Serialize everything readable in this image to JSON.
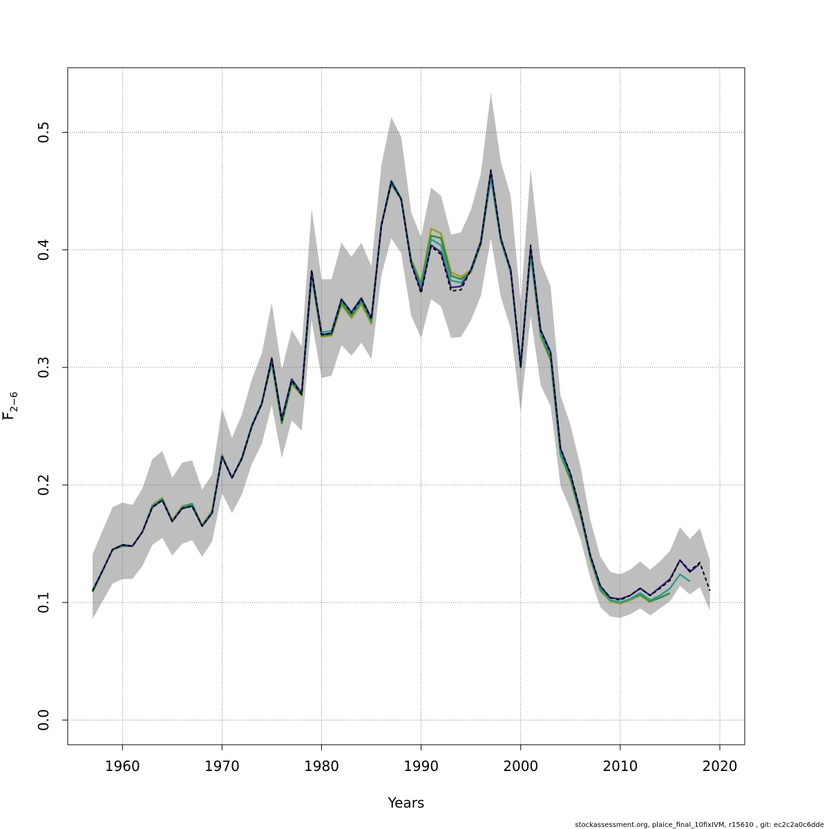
{
  "chart_data": {
    "type": "line",
    "title": "",
    "xlabel": "Years",
    "ylabel_main": "F",
    "ylabel_sub": "2−6",
    "xlim": [
      1954.5,
      2022.5
    ],
    "ylim": [
      -0.021,
      0.555
    ],
    "xticks": [
      1960,
      1970,
      1980,
      1990,
      2000,
      2010,
      2020
    ],
    "yticks": [
      0.0,
      0.1,
      0.2,
      0.3,
      0.4,
      0.5
    ],
    "ytick_labels": [
      "0.0",
      "0.1",
      "0.2",
      "0.3",
      "0.4",
      "0.5"
    ],
    "grid": true,
    "band_color": "#bebebe",
    "band": {
      "x": [
        1957,
        1958,
        1959,
        1960,
        1961,
        1962,
        1963,
        1964,
        1965,
        1966,
        1967,
        1968,
        1969,
        1970,
        1971,
        1972,
        1973,
        1974,
        1975,
        1976,
        1977,
        1978,
        1979,
        1980,
        1981,
        1982,
        1983,
        1984,
        1985,
        1986,
        1987,
        1988,
        1989,
        1990,
        1991,
        1992,
        1993,
        1994,
        1995,
        1996,
        1997,
        1998,
        1999,
        2000,
        2001,
        2002,
        2003,
        2004,
        2005,
        2006,
        2007,
        2008,
        2009,
        2010,
        2011,
        2012,
        2013,
        2014,
        2015,
        2016,
        2017,
        2018,
        2019
      ],
      "upper": [
        0.141,
        0.161,
        0.181,
        0.185,
        0.183,
        0.197,
        0.222,
        0.229,
        0.206,
        0.219,
        0.221,
        0.196,
        0.209,
        0.265,
        0.24,
        0.26,
        0.29,
        0.312,
        0.355,
        0.298,
        0.332,
        0.318,
        0.435,
        0.375,
        0.375,
        0.406,
        0.394,
        0.406,
        0.386,
        0.472,
        0.513,
        0.496,
        0.432,
        0.411,
        0.453,
        0.446,
        0.413,
        0.415,
        0.434,
        0.465,
        0.534,
        0.475,
        0.446,
        0.355,
        0.469,
        0.39,
        0.369,
        0.276,
        0.251,
        0.216,
        0.17,
        0.139,
        0.126,
        0.124,
        0.128,
        0.135,
        0.128,
        0.135,
        0.144,
        0.164,
        0.154,
        0.163,
        0.136
      ],
      "lower": [
        0.086,
        0.101,
        0.116,
        0.12,
        0.12,
        0.131,
        0.149,
        0.155,
        0.14,
        0.15,
        0.153,
        0.139,
        0.152,
        0.193,
        0.176,
        0.192,
        0.218,
        0.235,
        0.268,
        0.223,
        0.255,
        0.246,
        0.34,
        0.291,
        0.293,
        0.319,
        0.31,
        0.321,
        0.307,
        0.378,
        0.41,
        0.397,
        0.344,
        0.325,
        0.358,
        0.352,
        0.325,
        0.326,
        0.34,
        0.361,
        0.41,
        0.36,
        0.333,
        0.262,
        0.344,
        0.285,
        0.267,
        0.199,
        0.179,
        0.154,
        0.121,
        0.096,
        0.088,
        0.087,
        0.09,
        0.095,
        0.089,
        0.095,
        0.101,
        0.114,
        0.107,
        0.113,
        0.093
      ]
    },
    "series": [
      {
        "color": "#000000",
        "dashed": true,
        "width": 2,
        "x": [
          1957,
          1958,
          1959,
          1960,
          1961,
          1962,
          1963,
          1964,
          1965,
          1966,
          1967,
          1968,
          1969,
          1970,
          1971,
          1972,
          1973,
          1974,
          1975,
          1976,
          1977,
          1978,
          1979,
          1980,
          1981,
          1982,
          1983,
          1984,
          1985,
          1986,
          1987,
          1988,
          1989,
          1990,
          1991,
          1992,
          1993,
          1994,
          1995,
          1996,
          1997,
          1998,
          1999,
          2000,
          2001,
          2002,
          2003,
          2004,
          2005,
          2006,
          2007,
          2008,
          2009,
          2010,
          2011,
          2012,
          2013,
          2014,
          2015,
          2016,
          2017,
          2018,
          2019
        ],
        "y": [
          0.11,
          0.127,
          0.145,
          0.149,
          0.148,
          0.16,
          0.181,
          0.187,
          0.169,
          0.18,
          0.182,
          0.165,
          0.176,
          0.224,
          0.206,
          0.223,
          0.25,
          0.269,
          0.307,
          0.255,
          0.289,
          0.277,
          0.383,
          0.328,
          0.329,
          0.358,
          0.346,
          0.358,
          0.341,
          0.42,
          0.458,
          0.443,
          0.388,
          0.363,
          0.403,
          0.396,
          0.365,
          0.366,
          0.383,
          0.406,
          0.468,
          0.41,
          0.383,
          0.3,
          0.404,
          0.331,
          0.312,
          0.231,
          0.21,
          0.178,
          0.14,
          0.114,
          0.104,
          0.102,
          0.106,
          0.112,
          0.106,
          0.112,
          0.119,
          0.136,
          0.127,
          0.134,
          0.11
        ]
      },
      {
        "color": "#2b2b7f",
        "dashed": false,
        "width": 2.5,
        "x": [
          1957,
          1958,
          1959,
          1960,
          1961,
          1962,
          1963,
          1964,
          1965,
          1966,
          1967,
          1968,
          1969,
          1970,
          1971,
          1972,
          1973,
          1974,
          1975,
          1976,
          1977,
          1978,
          1979,
          1980,
          1981,
          1982,
          1983,
          1984,
          1985,
          1986,
          1987,
          1988,
          1989,
          1990,
          1991,
          1992,
          1993,
          1994,
          1995,
          1996,
          1997,
          1998,
          1999,
          2000,
          2001,
          2002,
          2003,
          2004,
          2005,
          2006,
          2007,
          2008,
          2009,
          2010,
          2011,
          2012,
          2013,
          2014,
          2015,
          2016,
          2017,
          2018
        ],
        "y": [
          0.11,
          0.127,
          0.145,
          0.149,
          0.148,
          0.16,
          0.181,
          0.187,
          0.169,
          0.18,
          0.182,
          0.165,
          0.176,
          0.224,
          0.206,
          0.223,
          0.25,
          0.269,
          0.308,
          0.256,
          0.29,
          0.278,
          0.382,
          0.328,
          0.329,
          0.358,
          0.347,
          0.359,
          0.342,
          0.421,
          0.458,
          0.443,
          0.389,
          0.365,
          0.404,
          0.398,
          0.368,
          0.369,
          0.383,
          0.407,
          0.467,
          0.41,
          0.383,
          0.301,
          0.402,
          0.332,
          0.313,
          0.231,
          0.209,
          0.177,
          0.14,
          0.114,
          0.104,
          0.103,
          0.106,
          0.112,
          0.106,
          0.113,
          0.12,
          0.136,
          0.126,
          0.133
        ]
      },
      {
        "color": "#2a9d8f",
        "dashed": false,
        "width": 2.5,
        "x": [
          1957,
          1958,
          1959,
          1960,
          1961,
          1962,
          1963,
          1964,
          1965,
          1966,
          1967,
          1968,
          1969,
          1970,
          1971,
          1972,
          1973,
          1974,
          1975,
          1976,
          1977,
          1978,
          1979,
          1980,
          1981,
          1982,
          1983,
          1984,
          1985,
          1986,
          1987,
          1988,
          1989,
          1990,
          1991,
          1992,
          1993,
          1994,
          1995,
          1996,
          1997,
          1998,
          1999,
          2000,
          2001,
          2002,
          2003,
          2004,
          2005,
          2006,
          2007,
          2008,
          2009,
          2010,
          2011,
          2012,
          2013,
          2014,
          2015,
          2016,
          2017
        ],
        "y": [
          0.11,
          0.127,
          0.145,
          0.149,
          0.148,
          0.16,
          0.182,
          0.188,
          0.169,
          0.181,
          0.183,
          0.165,
          0.177,
          0.225,
          0.206,
          0.223,
          0.251,
          0.27,
          0.306,
          0.255,
          0.289,
          0.278,
          0.379,
          0.33,
          0.331,
          0.357,
          0.345,
          0.357,
          0.34,
          0.42,
          0.459,
          0.444,
          0.39,
          0.368,
          0.409,
          0.404,
          0.374,
          0.372,
          0.382,
          0.406,
          0.462,
          0.409,
          0.382,
          0.3,
          0.398,
          0.328,
          0.31,
          0.228,
          0.207,
          0.176,
          0.139,
          0.112,
          0.102,
          0.1,
          0.103,
          0.108,
          0.102,
          0.106,
          0.112,
          0.124,
          0.118
        ]
      },
      {
        "color": "#2e8b2e",
        "dashed": false,
        "width": 2.5,
        "x": [
          1957,
          1958,
          1959,
          1960,
          1961,
          1962,
          1963,
          1964,
          1965,
          1966,
          1967,
          1968,
          1969,
          1970,
          1971,
          1972,
          1973,
          1974,
          1975,
          1976,
          1977,
          1978,
          1979,
          1980,
          1981,
          1982,
          1983,
          1984,
          1985,
          1986,
          1987,
          1988,
          1989,
          1990,
          1991,
          1992,
          1993,
          1994,
          1995,
          1996,
          1997,
          1998,
          1999,
          2000,
          2001,
          2002,
          2003,
          2004,
          2005,
          2006,
          2007,
          2008,
          2009,
          2010,
          2011,
          2012,
          2013,
          2014,
          2015
        ],
        "y": [
          0.109,
          0.127,
          0.145,
          0.148,
          0.148,
          0.16,
          0.182,
          0.188,
          0.169,
          0.181,
          0.184,
          0.165,
          0.177,
          0.225,
          0.206,
          0.222,
          0.25,
          0.27,
          0.304,
          0.253,
          0.287,
          0.277,
          0.377,
          0.327,
          0.328,
          0.355,
          0.344,
          0.356,
          0.339,
          0.421,
          0.456,
          0.443,
          0.391,
          0.37,
          0.412,
          0.41,
          0.378,
          0.375,
          0.381,
          0.405,
          0.461,
          0.408,
          0.381,
          0.303,
          0.396,
          0.328,
          0.307,
          0.226,
          0.205,
          0.175,
          0.138,
          0.111,
          0.102,
          0.1,
          0.103,
          0.107,
          0.101,
          0.104,
          0.108
        ]
      },
      {
        "color": "#9a9a2c",
        "dashed": false,
        "width": 2.5,
        "x": [
          1957,
          1958,
          1959,
          1960,
          1961,
          1962,
          1963,
          1964,
          1965,
          1966,
          1967,
          1968,
          1969,
          1970,
          1971,
          1972,
          1973,
          1974,
          1975,
          1976,
          1977,
          1978,
          1979,
          1980,
          1981,
          1982,
          1983,
          1984,
          1985,
          1986,
          1987,
          1988,
          1989,
          1990,
          1991,
          1992,
          1993,
          1994,
          1995,
          1996,
          1997,
          1998,
          1999,
          2000,
          2001,
          2002,
          2003,
          2004,
          2005,
          2006,
          2007,
          2008,
          2009,
          2010,
          2011,
          2012,
          2013
        ],
        "y": [
          0.109,
          0.127,
          0.145,
          0.148,
          0.148,
          0.16,
          0.183,
          0.189,
          0.17,
          0.182,
          0.184,
          0.166,
          0.178,
          0.226,
          0.206,
          0.222,
          0.25,
          0.27,
          0.303,
          0.252,
          0.286,
          0.276,
          0.376,
          0.326,
          0.327,
          0.353,
          0.342,
          0.354,
          0.337,
          0.422,
          0.456,
          0.444,
          0.392,
          0.372,
          0.418,
          0.414,
          0.381,
          0.377,
          0.383,
          0.408,
          0.465,
          0.41,
          0.38,
          0.304,
          0.396,
          0.326,
          0.306,
          0.226,
          0.204,
          0.174,
          0.137,
          0.11,
          0.101,
          0.099,
          0.102,
          0.106,
          0.1
        ]
      }
    ]
  },
  "footer_note": "stockassessment.org, plaice_final_10fixIVM, r15610 , git: ec2c2a0c6dde"
}
